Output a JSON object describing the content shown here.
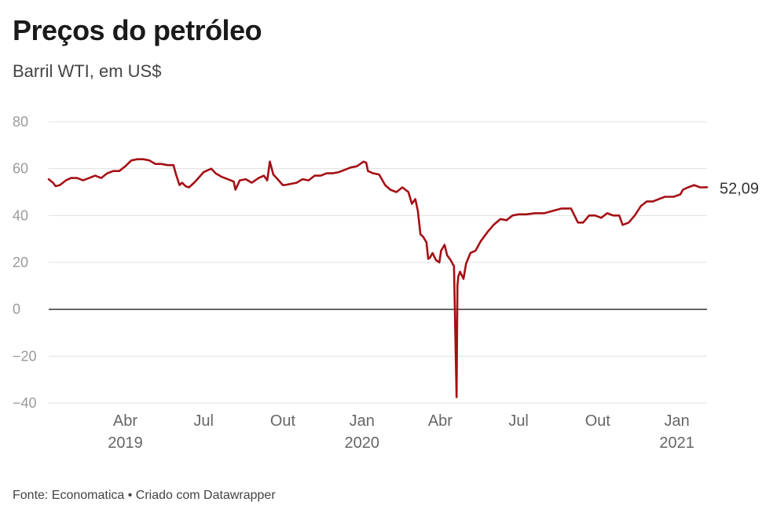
{
  "title": "Preços do petróleo",
  "subtitle": "Barril WTI, em US$",
  "footer": "Fonte: Economatica • Criado com Datawrapper",
  "colors": {
    "line": "#a50f15",
    "grid": "#e0e0e0",
    "zero_line": "#222222"
  },
  "chart_data": {
    "type": "line",
    "title": "Preços do petróleo",
    "subtitle": "Barril WTI, em US$",
    "xlabel": "",
    "ylabel": "",
    "xlim": [
      "2019-01-02",
      "2021-02-05"
    ],
    "ylim": [
      -40,
      80
    ],
    "yticks": [
      80,
      60,
      40,
      20,
      0,
      -20,
      -40
    ],
    "ytick_labels": [
      "80",
      "60",
      "40",
      "20",
      "0",
      "−20",
      "−40"
    ],
    "xticks": [
      {
        "date": "2019-04-01",
        "label": "Abr",
        "sublabel": "2019"
      },
      {
        "date": "2019-07-01",
        "label": "Jul",
        "sublabel": ""
      },
      {
        "date": "2019-10-01",
        "label": "Out",
        "sublabel": ""
      },
      {
        "date": "2020-01-01",
        "label": "Jan",
        "sublabel": "2020"
      },
      {
        "date": "2020-04-01",
        "label": "Abr",
        "sublabel": ""
      },
      {
        "date": "2020-07-01",
        "label": "Jul",
        "sublabel": ""
      },
      {
        "date": "2020-10-01",
        "label": "Out",
        "sublabel": ""
      },
      {
        "date": "2021-01-01",
        "label": "Jan",
        "sublabel": "2021"
      }
    ],
    "grid": true,
    "series": [
      {
        "end_label": "52,09",
        "color": "#a50f15",
        "x": [
          "2019-01-02",
          "2019-01-07",
          "2019-01-10",
          "2019-01-15",
          "2019-01-22",
          "2019-01-28",
          "2019-02-04",
          "2019-02-11",
          "2019-02-18",
          "2019-02-25",
          "2019-03-04",
          "2019-03-11",
          "2019-03-18",
          "2019-03-25",
          "2019-04-01",
          "2019-04-08",
          "2019-04-15",
          "2019-04-22",
          "2019-04-29",
          "2019-05-06",
          "2019-05-13",
          "2019-05-20",
          "2019-05-27",
          "2019-05-30",
          "2019-06-03",
          "2019-06-06",
          "2019-06-10",
          "2019-06-14",
          "2019-06-20",
          "2019-06-25",
          "2019-07-01",
          "2019-07-10",
          "2019-07-15",
          "2019-07-22",
          "2019-07-29",
          "2019-08-05",
          "2019-08-07",
          "2019-08-12",
          "2019-08-19",
          "2019-08-26",
          "2019-09-03",
          "2019-09-09",
          "2019-09-13",
          "2019-09-16",
          "2019-09-20",
          "2019-09-25",
          "2019-10-01",
          "2019-10-03",
          "2019-10-10",
          "2019-10-17",
          "2019-10-24",
          "2019-10-31",
          "2019-11-07",
          "2019-11-14",
          "2019-11-21",
          "2019-11-28",
          "2019-12-05",
          "2019-12-12",
          "2019-12-19",
          "2019-12-26",
          "2020-01-03",
          "2020-01-06",
          "2020-01-08",
          "2020-01-14",
          "2020-01-21",
          "2020-01-28",
          "2020-02-03",
          "2020-02-10",
          "2020-02-17",
          "2020-02-24",
          "2020-02-28",
          "2020-03-03",
          "2020-03-06",
          "2020-03-09",
          "2020-03-12",
          "2020-03-16",
          "2020-03-18",
          "2020-03-20",
          "2020-03-23",
          "2020-03-27",
          "2020-03-31",
          "2020-04-02",
          "2020-04-06",
          "2020-04-09",
          "2020-04-13",
          "2020-04-16",
          "2020-04-17",
          "2020-04-20",
          "2020-04-21",
          "2020-04-22",
          "2020-04-24",
          "2020-04-28",
          "2020-05-01",
          "2020-05-06",
          "2020-05-12",
          "2020-05-18",
          "2020-05-26",
          "2020-06-02",
          "2020-06-10",
          "2020-06-17",
          "2020-06-24",
          "2020-07-01",
          "2020-07-10",
          "2020-07-20",
          "2020-07-31",
          "2020-08-10",
          "2020-08-20",
          "2020-08-31",
          "2020-09-04",
          "2020-09-08",
          "2020-09-14",
          "2020-09-21",
          "2020-09-28",
          "2020-10-05",
          "2020-10-12",
          "2020-10-19",
          "2020-10-26",
          "2020-10-30",
          "2020-11-06",
          "2020-11-13",
          "2020-11-20",
          "2020-11-27",
          "2020-12-04",
          "2020-12-11",
          "2020-12-18",
          "2020-12-28",
          "2021-01-05",
          "2021-01-08",
          "2021-01-14",
          "2021-01-21",
          "2021-01-28",
          "2021-02-01",
          "2021-02-05"
        ],
        "y": [
          55.5,
          54,
          52.5,
          53,
          55,
          56,
          56,
          55,
          56,
          57,
          56,
          58,
          59,
          59,
          61,
          63.5,
          64,
          64,
          63.5,
          62,
          62,
          61.5,
          61.5,
          57.5,
          53,
          54,
          52.5,
          52,
          54,
          56,
          58.5,
          60,
          58,
          56.5,
          55.5,
          54.5,
          51,
          55,
          55.5,
          54,
          56,
          57,
          55,
          63,
          57.5,
          55.5,
          53,
          53,
          53.5,
          54,
          55.5,
          55,
          57,
          57,
          58,
          58,
          58.5,
          59.5,
          60.5,
          61,
          63,
          62.5,
          59,
          58,
          57.5,
          53,
          51,
          50,
          52,
          50,
          45,
          47,
          42,
          32,
          31,
          28.5,
          21.5,
          22,
          24,
          21,
          20,
          25,
          27.5,
          23,
          21,
          19,
          18.5,
          -37.5,
          10,
          14,
          16,
          13,
          19.5,
          24,
          25,
          29,
          33,
          36,
          38.5,
          38,
          40,
          40.5,
          40.5,
          41,
          41,
          42,
          43,
          43,
          40,
          37,
          37,
          40,
          40,
          39,
          41,
          40,
          40,
          36,
          37,
          40,
          44,
          46,
          46,
          47,
          48,
          48,
          49,
          51,
          52,
          53,
          52,
          52,
          52.09
        ]
      }
    ]
  }
}
